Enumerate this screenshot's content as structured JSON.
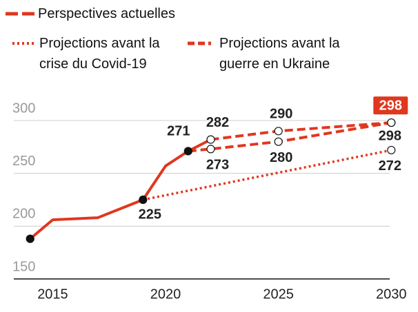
{
  "chart_data": {
    "type": "line",
    "xlim": [
      2013,
      2031
    ],
    "xticks": [
      2015,
      2020,
      2025,
      2030
    ],
    "ylim": [
      150,
      300
    ],
    "yticks": [
      150,
      200,
      250,
      300
    ],
    "grid": true,
    "series": [
      {
        "name": "Perspectives actuelles",
        "color": "#e0371f",
        "style": "dashed",
        "projection_start": 2022,
        "x": [
          2014,
          2015,
          2017,
          2019,
          2020,
          2021,
          2022,
          2025,
          2030
        ],
        "values": [
          188,
          206,
          208,
          225,
          257,
          271,
          282,
          290,
          298
        ],
        "value_labels": [
          null,
          null,
          null,
          225,
          null,
          271,
          282,
          290,
          298
        ]
      },
      {
        "name": "Projections avant la crise du Covid-19",
        "color": "#e0371f",
        "style": "dotted",
        "x": [
          2019,
          2030
        ],
        "values": [
          225,
          272
        ],
        "value_labels": [
          null,
          272
        ]
      },
      {
        "name": "Projections avant la guerre en Ukraine",
        "color": "#e0371f",
        "style": "dashed",
        "x": [
          2021,
          2022,
          2025,
          2030
        ],
        "values": [
          271,
          273,
          280,
          298
        ],
        "value_labels": [
          null,
          273,
          280,
          298
        ]
      }
    ]
  }
}
